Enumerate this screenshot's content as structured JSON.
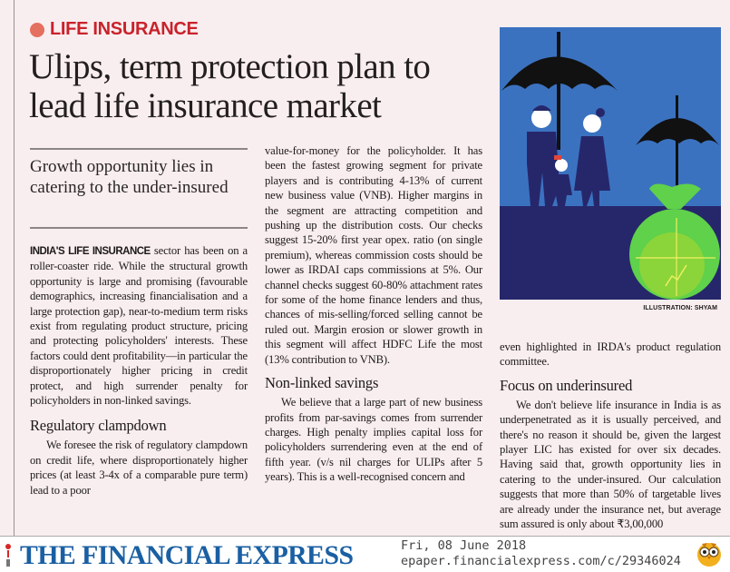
{
  "article": {
    "kicker": "LIFE INSURANCE",
    "headline": "Ulips, term protection plan to lead life insurance market",
    "deck": "Growth opportunity lies in catering to the under-insured",
    "lead_caps": "INDIA'S LIFE INSURANCE",
    "col1_p1": " sector has been on a roller-coaster ride. While the structural growth opportunity is large and promising (favourable demographics, increasing financialisation and a large protection gap), near-to-medium term risks exist from regulating product structure, pricing and protecting policyholders' interests. These factors could dent profitability—in particular the disproportionately higher pricing in credit protect, and high surrender penalty for policyholders in non-linked savings.",
    "heading_regulatory": "Regulatory clampdown",
    "col1_p2": "We foresee the risk of regulatory clampdown on credit life, where disproportionately higher prices (at least 3-4x of a comparable pure term) lead to a poor",
    "col2_p1": "value-for-money for the policyholder. It has been the fastest growing segment for private players and is contributing 4-13% of current new business value (VNB). Higher margins in the segment are attracting competition and pushing up the distribution costs. Our checks suggest 15-20% first year opex. ratio (on single premium), whereas commission costs should be lower as IRDAI caps commissions at 5%. Our channel checks suggest 60-80% attachment rates for some of the home finance lenders and thus, chances of mis-selling/forced selling cannot be ruled out. Margin erosion or slower growth in this segment will affect HDFC Life the most (13% contribution to VNB).",
    "heading_nonlinked": "Non-linked savings",
    "col2_p2": "We believe that a large part of new business profits from par-savings comes from surrender charges. High penalty implies capital loss for policyholders surrendering even at the end of fifth year. (v/s nil charges for ULIPs after 5 years). This is a well-recognised concern and",
    "col3_p1": "even highlighted in IRDA's product regulation committee.",
    "heading_focus": "Focus on underinsured",
    "col3_p2": "We don't believe life insurance in India is as underpenetrated as it is usually perceived, and there's no reason it should be, given the largest player LIC has existed for over six decades. Having said that, growth opportunity lies in catering to the under-insured. Our calculation suggests that more than 50% of targetable lives are already under the insurance net, but average sum assured is only about ₹3,00,000",
    "illustration_credit": "ILLUSTRATION: SHYAM"
  },
  "footer": {
    "masthead": "THE FINANCIAL EXPRESS",
    "date": "Fri, 08 June 2018",
    "url": "epaper.financialexpress.com/c/29346024"
  },
  "colors": {
    "kicker_red": "#c9222b",
    "masthead_blue": "#1a5fa3",
    "background": "#f9eeef",
    "illus_sky": "#3b72c0",
    "illus_ground": "#26276b",
    "bag_green": "#5fd14a"
  },
  "icons": [
    "kicker-dot-icon",
    "owl-mascot-icon"
  ]
}
